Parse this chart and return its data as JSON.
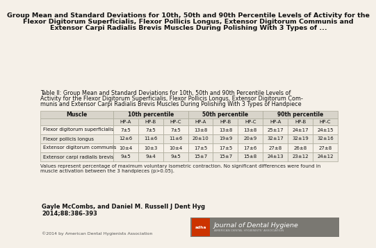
{
  "title_lines": [
    "Group Mean and Standard Deviations for 10th, 50th and 90th Percentile Levels of Activity for the",
    "Flexor Digitorum Superficialis, Flexor Pollicis Longus, Extensor Digitorum Communis and",
    "Extensor Carpi Radialis Brevis Muscles During Polishing With 3 Types of ..."
  ],
  "caption_lines": [
    "Table II: Group Mean and Standard Deviations for 10th, 50th and 90th Percentile Levels of",
    "Activity for the Flexor Digitorum Superficialis, Flexor Pollicis Longus, Extensor Digitorum Com-",
    "munis and Extensor Carpi Radialis Brevis Muscles During Polishing With 3 Types of Handpiece"
  ],
  "header1_spans": [
    [
      0,
      1,
      "Muscle"
    ],
    [
      1,
      3,
      "10th percentile"
    ],
    [
      4,
      3,
      "50th percentile"
    ],
    [
      7,
      3,
      "90th percentile"
    ]
  ],
  "header2": [
    "",
    "HP-A",
    "HP-B",
    "HP-C",
    "HP-A",
    "HP-B",
    "HP-C",
    "HP-A",
    "HP-B",
    "HP-C"
  ],
  "rows": [
    [
      "Flexor digitorum superficialis",
      "7±5",
      "7±5",
      "7±5",
      "13±8",
      "13±8",
      "13±8",
      "25±17",
      "24±17",
      "24±15"
    ],
    [
      "Flexor pollicis longus",
      "12±6",
      "11±6",
      "11±6",
      "20±10",
      "19±9",
      "20±9",
      "32±17",
      "32±19",
      "32±16"
    ],
    [
      "Extensor digitorum communis",
      "10±4",
      "10±3",
      "10±4",
      "17±5",
      "17±5",
      "17±6",
      "27±8",
      "26±8",
      "27±8"
    ],
    [
      "Extensor carpi radialis brevis",
      "9±5",
      "9±4",
      "9±5",
      "15±7",
      "15±7",
      "15±8",
      "24±13",
      "23±12",
      "24±12"
    ]
  ],
  "footnote_lines": [
    "Values represent percentage of maximum voluntary isometric contraction. No significant differences were found in",
    "muscle activation between the 3 handpieces (p>0.05)."
  ],
  "author_line1": "Gayle McCombs, and Daniel M. Russell J Dent Hyg",
  "author_line2": "2014;88:386-393",
  "copyright": "©2014 by American Dental Hygienists Association",
  "bg_color": "#f5f0e8",
  "header1_bg": "#d8d4ca",
  "header2_bg": "#e0dcd2",
  "row_bg_odd": "#f5f0e8",
  "row_bg_even": "#ebe7de",
  "border_color": "#aaa898",
  "journal_bar_bg": "#7a7872",
  "journal_accent_bg": "#cc3300",
  "journal_text": "Journal of Dental Hygiene",
  "journal_sub": "AMERICAN DENTAL HYGIENISTS' ASSOCIATION",
  "title_fontsize": 6.8,
  "caption_fontsize": 5.8,
  "table_fontsize": 5.5,
  "footnote_fontsize": 5.0,
  "author_fontsize": 6.0,
  "copyright_fontsize": 4.5
}
